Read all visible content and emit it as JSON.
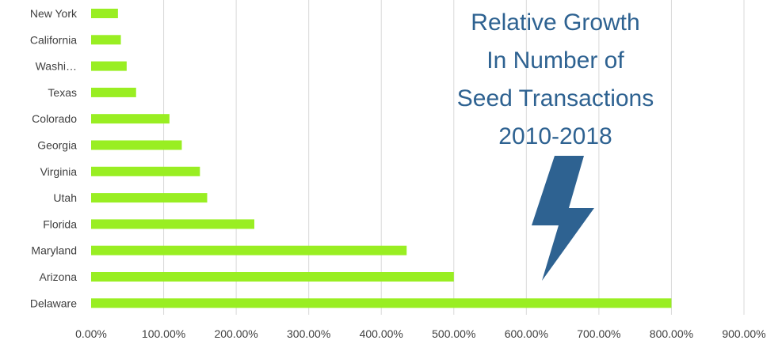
{
  "chart_data": {
    "type": "bar",
    "orientation": "horizontal",
    "title_lines": [
      "Relative Growth",
      "In Number of",
      "Seed Transactions",
      "2010-2018"
    ],
    "categories": [
      "New York",
      "California",
      "Washi…",
      "Texas",
      "Colorado",
      "Georgia",
      "Virginia",
      "Utah",
      "Florida",
      "Maryland",
      "Arizona",
      "Delaware"
    ],
    "values": [
      37,
      41,
      49,
      62,
      108,
      125,
      150,
      160,
      225,
      435,
      500,
      800
    ],
    "xlim": [
      0,
      900
    ],
    "xticks": [
      0,
      100,
      200,
      300,
      400,
      500,
      600,
      700,
      800,
      900
    ],
    "xtick_labels": [
      "0.00%",
      "100.00%",
      "200.00%",
      "300.00%",
      "400.00%",
      "500.00%",
      "600.00%",
      "700.00%",
      "800.00%",
      "900.00%"
    ],
    "xlabel": "",
    "ylabel": "",
    "grid": "vertical",
    "legend": "none",
    "bar_color": "#99ee22",
    "title_color": "#2e6291",
    "icon": "lightning-bolt-icon",
    "icon_color": "#2e6291"
  }
}
